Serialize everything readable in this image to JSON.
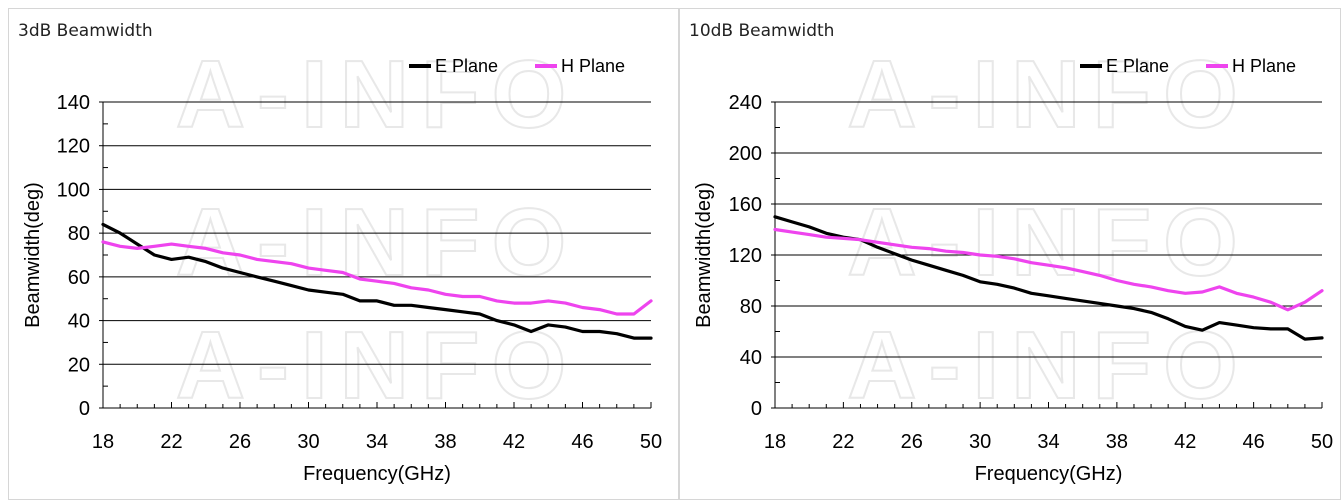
{
  "panels": [
    {
      "title": "3dB Beamwidth"
    },
    {
      "title": "10dB Beamwidth"
    }
  ],
  "watermark": "A-INFO",
  "colors": {
    "e_plane": "#000000",
    "h_plane": "#ee44ee",
    "grid": "#000000",
    "watermark": "#e8e8e8"
  },
  "chart_data": [
    {
      "type": "line",
      "title": "",
      "xlabel": "Frequency(GHz)",
      "ylabel": "Beamwidth(deg)",
      "xlim": [
        18,
        50
      ],
      "ylim": [
        0,
        140
      ],
      "xticks": [
        18,
        22,
        26,
        30,
        34,
        38,
        42,
        46,
        50
      ],
      "yticks": [
        0,
        20,
        40,
        60,
        80,
        100,
        120,
        140
      ],
      "grid": true,
      "legend": "top-right",
      "series": [
        {
          "name": "E Plane",
          "color": "#000000",
          "x": [
            18,
            19,
            20,
            21,
            22,
            23,
            24,
            25,
            26,
            27,
            28,
            29,
            30,
            31,
            32,
            33,
            34,
            35,
            36,
            37,
            38,
            39,
            40,
            41,
            42,
            43,
            44,
            45,
            46,
            47,
            48,
            49,
            50
          ],
          "y": [
            84,
            80,
            75,
            70,
            68,
            69,
            67,
            64,
            62,
            60,
            58,
            56,
            54,
            53,
            52,
            49,
            49,
            47,
            47,
            46,
            45,
            44,
            43,
            40,
            38,
            35,
            38,
            37,
            35,
            35,
            34,
            32,
            32
          ]
        },
        {
          "name": "H Plane",
          "color": "#ee44ee",
          "x": [
            18,
            19,
            20,
            21,
            22,
            23,
            24,
            25,
            26,
            27,
            28,
            29,
            30,
            31,
            32,
            33,
            34,
            35,
            36,
            37,
            38,
            39,
            40,
            41,
            42,
            43,
            44,
            45,
            46,
            47,
            48,
            49,
            50
          ],
          "y": [
            76,
            74,
            73,
            74,
            75,
            74,
            73,
            71,
            70,
            68,
            67,
            66,
            64,
            63,
            62,
            59,
            58,
            57,
            55,
            54,
            52,
            51,
            51,
            49,
            48,
            48,
            49,
            48,
            46,
            45,
            43,
            43,
            49
          ]
        }
      ]
    },
    {
      "type": "line",
      "title": "",
      "xlabel": "Frequency(GHz)",
      "ylabel": "Beamwidth(deg)",
      "xlim": [
        18,
        50
      ],
      "ylim": [
        0,
        240
      ],
      "xticks": [
        18,
        22,
        26,
        30,
        34,
        38,
        42,
        46,
        50
      ],
      "yticks": [
        0,
        40,
        80,
        120,
        160,
        200,
        240
      ],
      "grid": true,
      "legend": "top-right",
      "series": [
        {
          "name": "E Plane",
          "color": "#000000",
          "x": [
            18,
            19,
            20,
            21,
            22,
            23,
            24,
            25,
            26,
            27,
            28,
            29,
            30,
            31,
            32,
            33,
            34,
            35,
            36,
            37,
            38,
            39,
            40,
            41,
            42,
            43,
            44,
            45,
            46,
            47,
            48,
            49,
            50
          ],
          "y": [
            150,
            146,
            142,
            137,
            134,
            132,
            126,
            121,
            116,
            112,
            108,
            104,
            99,
            97,
            94,
            90,
            88,
            86,
            84,
            82,
            80,
            78,
            75,
            70,
            64,
            61,
            67,
            65,
            63,
            62,
            62,
            54,
            55
          ]
        },
        {
          "name": "H Plane",
          "color": "#ee44ee",
          "x": [
            18,
            19,
            20,
            21,
            22,
            23,
            24,
            25,
            26,
            27,
            28,
            29,
            30,
            31,
            32,
            33,
            34,
            35,
            36,
            37,
            38,
            39,
            40,
            41,
            42,
            43,
            44,
            45,
            46,
            47,
            48,
            49,
            50
          ],
          "y": [
            140,
            138,
            136,
            134,
            133,
            132,
            130,
            128,
            126,
            125,
            123,
            122,
            120,
            119,
            117,
            114,
            112,
            110,
            107,
            104,
            100,
            97,
            95,
            92,
            90,
            91,
            95,
            90,
            87,
            83,
            77,
            83,
            92
          ]
        }
      ]
    }
  ]
}
